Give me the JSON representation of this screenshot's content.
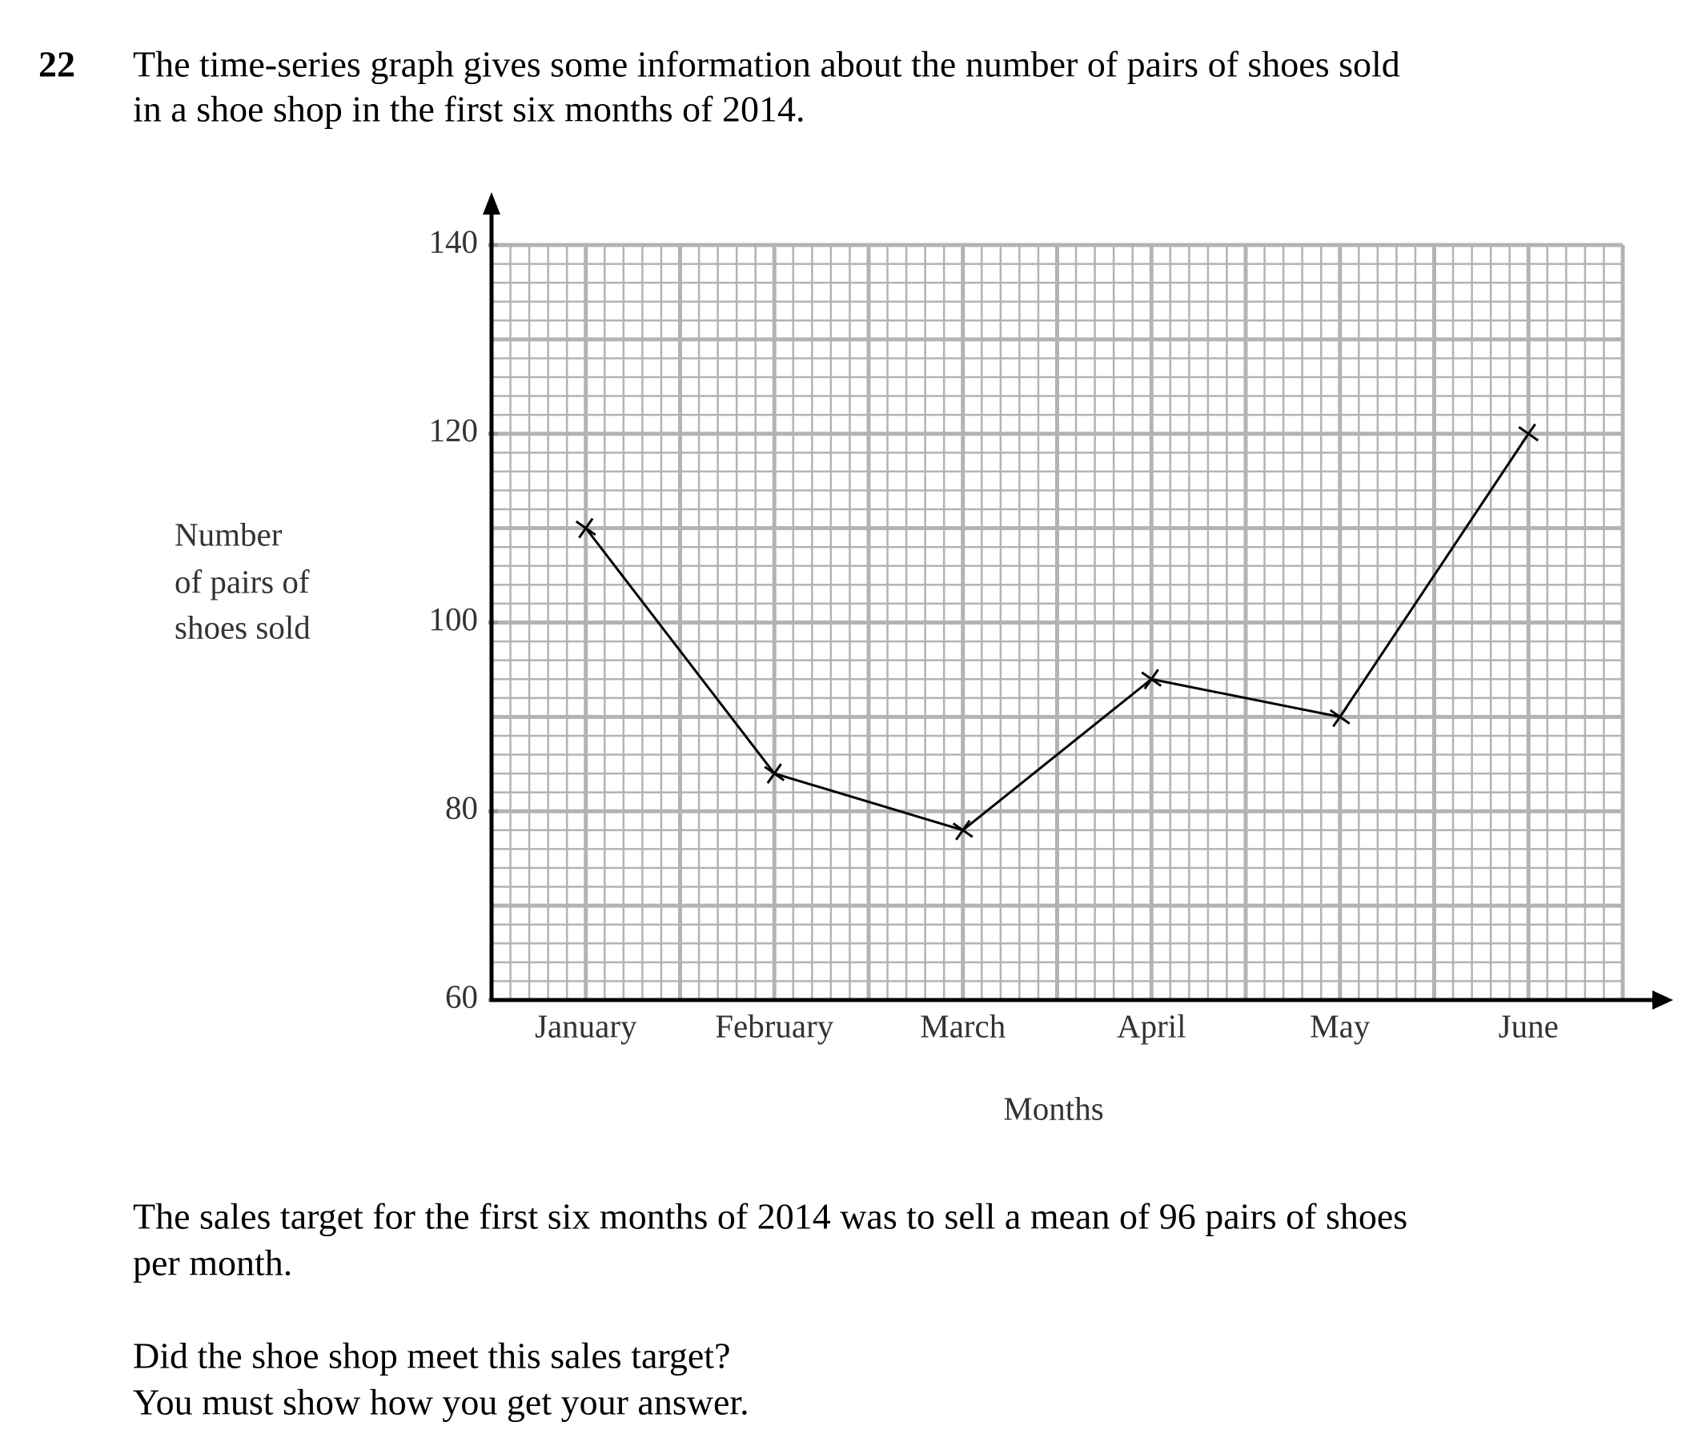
{
  "question": {
    "number": "22",
    "intro": [
      "The time-series graph gives some information about the number of pairs of shoes sold",
      "in a shoe shop in the first six months of 2014."
    ]
  },
  "chart_data": {
    "type": "line",
    "xlabel": "Months",
    "ylabel": [
      "Number",
      "of pairs of",
      "shoes sold"
    ],
    "categories": [
      "January",
      "February",
      "March",
      "April",
      "May",
      "June"
    ],
    "values": [
      110,
      84,
      78,
      94,
      90,
      120
    ],
    "color": "#000000",
    "ylim": [
      60,
      140
    ],
    "yticks": [
      60,
      80,
      100,
      120,
      140
    ],
    "grid": true
  },
  "closing": [
    "The sales target for the first six months of 2014 was to sell a mean of 96 pairs of shoes",
    "per month.",
    "Did the shoe shop meet this sales target?",
    "You must show how you get your answer."
  ]
}
